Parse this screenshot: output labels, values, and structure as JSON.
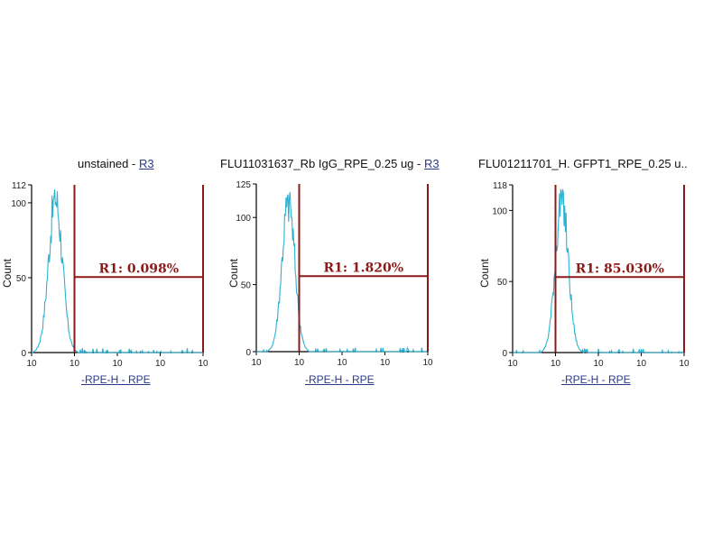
{
  "colors": {
    "histogram": "#2bb3d3",
    "gate": "#8b1a1a",
    "axis": "#000000",
    "link": "#2a3a8c"
  },
  "chart_data": [
    {
      "type": "histogram",
      "title": "unstained",
      "gate_link": "R3",
      "ylabel": "Count",
      "xlabel": "-RPE-H - RPE",
      "xscale": "log",
      "xlim": [
        1,
        10000
      ],
      "ylim": [
        0,
        112
      ],
      "ytick_labels": [
        "112",
        "100",
        "50",
        "0"
      ],
      "xtick_labels": [
        "10",
        "10",
        "10",
        "10",
        "10"
      ],
      "region": {
        "label": "R1: 0.098%",
        "range": [
          10,
          10000
        ]
      },
      "distribution": {
        "peak_x": 3.6,
        "peak_count": 110,
        "spread": 0.16
      }
    },
    {
      "type": "histogram",
      "title": "FLU11031637_Rb IgG_RPE_0.25 ug",
      "gate_link": "R3",
      "ylabel": "Count",
      "xlabel": "-RPE-H - RPE",
      "xscale": "log",
      "xlim": [
        1,
        10000
      ],
      "ylim": [
        0,
        125
      ],
      "ytick_labels": [
        "125",
        "100",
        "50",
        "0"
      ],
      "xtick_labels": [
        "10",
        "10",
        "10",
        "10",
        "10"
      ],
      "region": {
        "label": "R1: 1.820%",
        "range": [
          10,
          10000
        ]
      },
      "distribution": {
        "peak_x": 5.6,
        "peak_count": 120,
        "spread": 0.15
      }
    },
    {
      "type": "histogram",
      "title": "FLU01211701_H. GFPT1_RPE_0.25 u..",
      "gate_link": "",
      "ylabel": "Count",
      "xlabel": "-RPE-H - RPE",
      "xscale": "log",
      "xlim": [
        1,
        10000
      ],
      "ylim": [
        0,
        118
      ],
      "ytick_labels": [
        "118",
        "100",
        "50",
        "0"
      ],
      "xtick_labels": [
        "10",
        "10",
        "10",
        "10",
        "10"
      ],
      "region": {
        "label": "R1: 85.030%",
        "range": [
          10,
          10000
        ]
      },
      "distribution": {
        "peak_x": 14,
        "peak_count": 115,
        "spread": 0.15
      }
    }
  ]
}
